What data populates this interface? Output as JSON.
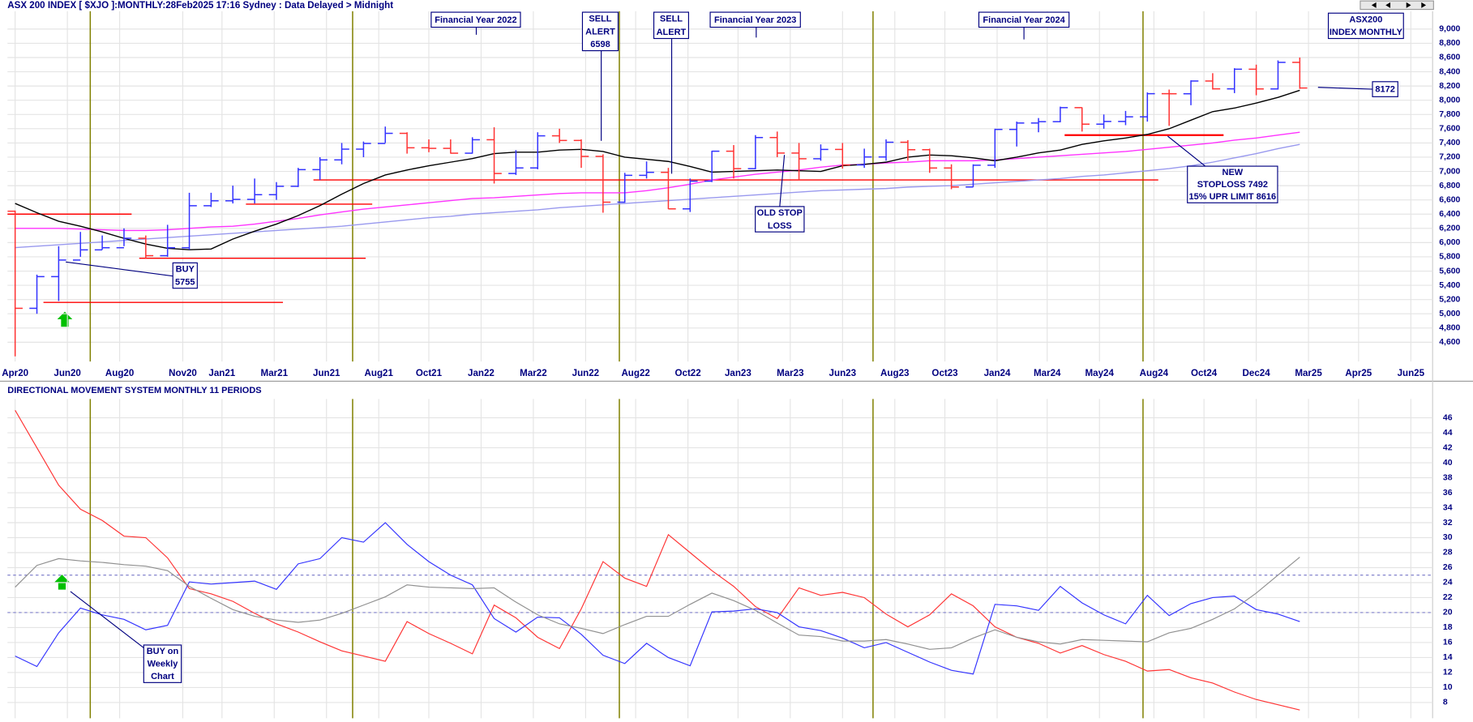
{
  "chart_data": [
    {
      "type": "ohlc",
      "title": "ASX 200 INDEX [ $XJO ]:MONTHLY:28Feb2025 17:16 Sydney : Data Delayed > Midnight",
      "xlim": [
        -0.35,
        65.1
      ],
      "xticks": [
        {
          "value": 0,
          "label": "Apr20"
        },
        {
          "value": 2.4,
          "label": "Jun20"
        },
        {
          "value": 4.8,
          "label": "Aug20"
        },
        {
          "value": 7.7,
          "label": "Nov20"
        },
        {
          "value": 9.5,
          "label": "Jan21"
        },
        {
          "value": 11.9,
          "label": "Mar21"
        },
        {
          "value": 14.3,
          "label": "Jun21"
        },
        {
          "value": 16.7,
          "label": "Aug21"
        },
        {
          "value": 19.0,
          "label": "Oct21"
        },
        {
          "value": 21.4,
          "label": "Jan22"
        },
        {
          "value": 23.8,
          "label": "Mar22"
        },
        {
          "value": 26.2,
          "label": "Jun22"
        },
        {
          "value": 28.5,
          "label": "Aug22"
        },
        {
          "value": 30.9,
          "label": "Oct22"
        },
        {
          "value": 33.2,
          "label": "Jan23"
        },
        {
          "value": 35.6,
          "label": "Mar23"
        },
        {
          "value": 38.0,
          "label": "Jun23"
        },
        {
          "value": 40.4,
          "label": "Aug23"
        },
        {
          "value": 42.7,
          "label": "Oct23"
        },
        {
          "value": 45.1,
          "label": "Jan24"
        },
        {
          "value": 47.4,
          "label": "Mar24"
        },
        {
          "value": 49.8,
          "label": "May24"
        },
        {
          "value": 52.3,
          "label": "Aug24"
        },
        {
          "value": 54.6,
          "label": "Oct24"
        },
        {
          "value": 57.0,
          "label": "Dec24"
        },
        {
          "value": 59.4,
          "label": "Mar25"
        },
        {
          "value": 61.7,
          "label": "Apr25"
        },
        {
          "value": 64.1,
          "label": "Jun25"
        }
      ],
      "ylim": [
        4330,
        9250
      ],
      "yticks": [
        {
          "value": 4600,
          "label": "4,600"
        },
        {
          "value": 4800,
          "label": "4,800"
        },
        {
          "value": 5000,
          "label": "5,000"
        },
        {
          "value": 5200,
          "label": "5,200"
        },
        {
          "value": 5400,
          "label": "5,400"
        },
        {
          "value": 5600,
          "label": "5,600"
        },
        {
          "value": 5800,
          "label": "5,800"
        },
        {
          "value": 6000,
          "label": "6,000"
        },
        {
          "value": 6200,
          "label": "6,200"
        },
        {
          "value": 6400,
          "label": "6,400"
        },
        {
          "value": 6600,
          "label": "6,600"
        },
        {
          "value": 6800,
          "label": "6,800"
        },
        {
          "value": 7000,
          "label": "7,000"
        },
        {
          "value": 7200,
          "label": "7,200"
        },
        {
          "value": 7400,
          "label": "7,400"
        },
        {
          "value": 7600,
          "label": "7,600"
        },
        {
          "value": 7800,
          "label": "7,800"
        },
        {
          "value": 8000,
          "label": "8,000"
        },
        {
          "value": 8200,
          "label": "8,200"
        },
        {
          "value": 8400,
          "label": "8,400"
        },
        {
          "value": 8600,
          "label": "8,600"
        },
        {
          "value": 8800,
          "label": "8,800"
        },
        {
          "value": 9000,
          "label": "9,000"
        }
      ],
      "grid": true,
      "up_color": "#3333ff",
      "down_color": "#ff3333",
      "open": [
        6441,
        5077,
        5522,
        5755,
        5898,
        5928,
        6061,
        5816,
        5928,
        6518,
        6587,
        6607,
        6673,
        6791,
        7025,
        7162,
        7313,
        7393,
        7535,
        7332,
        7324,
        7256,
        7445,
        6971,
        7049,
        7500,
        7435,
        7211,
        6568,
        6945,
        6987,
        6474,
        6863,
        7284,
        7039,
        7476,
        7258,
        7178,
        7309,
        7091,
        7203,
        7410,
        7305,
        7048,
        6781,
        7087,
        7590,
        7680,
        7699,
        7896,
        7664,
        7702,
        7767,
        8092,
        8091,
        8270,
        8160,
        8436,
        8159,
        8532
      ],
      "high": [
        6450,
        5550,
        5950,
        6150,
        6100,
        6200,
        6100,
        6250,
        6700,
        6700,
        6800,
        6900,
        6850,
        7050,
        7200,
        7400,
        7420,
        7630,
        7550,
        7450,
        7450,
        7480,
        7620,
        7300,
        7550,
        7600,
        7450,
        7240,
        6980,
        7140,
        7050,
        6900,
        7290,
        7370,
        7510,
        7560,
        7400,
        7380,
        7400,
        7320,
        7450,
        7440,
        7320,
        7100,
        7100,
        7600,
        7700,
        7750,
        7910,
        7900,
        7800,
        7850,
        8110,
        8150,
        8280,
        8380,
        8450,
        8500,
        8560,
        8600
      ],
      "low": [
        4402,
        5000,
        5180,
        5800,
        5900,
        5950,
        5780,
        5800,
        5900,
        6500,
        6550,
        6550,
        6600,
        6780,
        6880,
        7100,
        7200,
        7400,
        7250,
        7270,
        7250,
        7250,
        6830,
        6950,
        7030,
        7400,
        7050,
        6420,
        6560,
        6900,
        6470,
        6430,
        6850,
        6900,
        7030,
        7200,
        6880,
        7150,
        7040,
        7050,
        7150,
        7150,
        6980,
        6750,
        6780,
        7050,
        7350,
        7550,
        7690,
        7560,
        7600,
        7650,
        7700,
        7640,
        7930,
        8150,
        8100,
        8070,
        8150,
        8160
      ],
      "close": [
        5077,
        5522,
        5755,
        5898,
        5928,
        6061,
        5816,
        5928,
        6518,
        6587,
        6607,
        6673,
        6791,
        7025,
        7162,
        7313,
        7393,
        7535,
        7332,
        7324,
        7256,
        7445,
        6971,
        7049,
        7500,
        7435,
        7211,
        6568,
        6945,
        6987,
        6474,
        6863,
        7284,
        7039,
        7476,
        7258,
        7178,
        7309,
        7091,
        7203,
        7410,
        7305,
        7048,
        6781,
        7087,
        7590,
        7680,
        7699,
        7896,
        7664,
        7702,
        7767,
        8092,
        8091,
        8270,
        8160,
        8436,
        8159,
        8532,
        8172
      ],
      "overlays": [
        {
          "color": "#9999ee",
          "values": [
            5930,
            5950,
            5970,
            5990,
            6010,
            6030,
            6050,
            6070,
            6090,
            6110,
            6130,
            6150,
            6170,
            6190,
            6210,
            6230,
            6260,
            6290,
            6320,
            6350,
            6370,
            6400,
            6420,
            6440,
            6460,
            6490,
            6510,
            6530,
            6550,
            6570,
            6590,
            6610,
            6630,
            6650,
            6670,
            6690,
            6710,
            6730,
            6740,
            6750,
            6760,
            6780,
            6790,
            6800,
            6820,
            6840,
            6860,
            6880,
            6900,
            6930,
            6950,
            6980,
            7010,
            7040,
            7080,
            7130,
            7190,
            7250,
            7320,
            7380
          ]
        },
        {
          "color": "#ff33ff",
          "values": [
            6200,
            6200,
            6200,
            6190,
            6180,
            6170,
            6170,
            6180,
            6200,
            6220,
            6230,
            6260,
            6300,
            6340,
            6390,
            6430,
            6470,
            6500,
            6530,
            6560,
            6590,
            6620,
            6630,
            6650,
            6670,
            6690,
            6700,
            6700,
            6700,
            6730,
            6770,
            6820,
            6880,
            6920,
            6960,
            6990,
            7020,
            7060,
            7090,
            7100,
            7120,
            7130,
            7150,
            7150,
            7150,
            7160,
            7180,
            7200,
            7220,
            7240,
            7260,
            7280,
            7310,
            7340,
            7370,
            7400,
            7440,
            7470,
            7510,
            7550
          ]
        },
        {
          "color": "#000000",
          "values": [
            6550,
            6420,
            6300,
            6230,
            6150,
            6060,
            5980,
            5920,
            5900,
            5910,
            6050,
            6160,
            6260,
            6380,
            6520,
            6680,
            6830,
            6950,
            7020,
            7080,
            7130,
            7180,
            7250,
            7270,
            7270,
            7300,
            7310,
            7280,
            7200,
            7170,
            7140,
            7070,
            6990,
            7000,
            7010,
            7020,
            7010,
            7000,
            7080,
            7100,
            7130,
            7200,
            7230,
            7220,
            7190,
            7150,
            7200,
            7260,
            7300,
            7380,
            7430,
            7470,
            7520,
            7600,
            7720,
            7840,
            7890,
            7960,
            8040,
            8140
          ]
        }
      ],
      "level_color": "#ff0000",
      "levels": [
        {
          "value": 6400,
          "from": -0.35,
          "to": 5.35
        },
        {
          "value": 5780,
          "from": 5.7,
          "to": 16.1
        },
        {
          "value": 5160,
          "from": 1.3,
          "to": 12.3
        },
        {
          "value": 6540,
          "from": 10.6,
          "to": 16.4
        },
        {
          "value": 6880,
          "from": 13.7,
          "to": 52.5
        },
        {
          "value": 7510,
          "from": 48.2,
          "to": 55.5
        }
      ],
      "vline_color": "#808000",
      "vlines": [
        3.45,
        15.5,
        27.75,
        39.4,
        51.8
      ],
      "annotations": [
        [
          "Financial Year 2022"
        ],
        [
          "SELL",
          "ALERT",
          "6598"
        ],
        [
          "SELL",
          "ALERT"
        ],
        [
          "Financial Year 2023"
        ],
        [
          "Financial Year 2024"
        ],
        [
          "ASX200",
          "INDEX MONTHLY"
        ],
        [
          "8172"
        ],
        [
          "NEW",
          "STOPLOSS 7492",
          "15% UPR LIMIT 8616"
        ],
        [
          "OLD STOP",
          "LOSS"
        ],
        [
          "BUY",
          "5755"
        ]
      ]
    },
    {
      "type": "line",
      "title": "DIRECTIONAL MOVEMENT SYSTEM MONTHLY 11 PERIODS",
      "ylim": [
        5.9,
        48.5
      ],
      "yticks": [
        8,
        10,
        12,
        14,
        16,
        18,
        20,
        22,
        24,
        26,
        28,
        30,
        32,
        34,
        36,
        38,
        40,
        42,
        44,
        46
      ],
      "grid": true,
      "hline_color": "#8080cc",
      "hlines": [
        25,
        20
      ],
      "series": [
        {
          "color": "#ff3333",
          "values": [
            47,
            42,
            37,
            33.8,
            32.3,
            30.2,
            30,
            27.3,
            23.2,
            22.5,
            21.5,
            19.9,
            18.5,
            17.4,
            16.1,
            14.9,
            14.2,
            13.5,
            18.8,
            17.2,
            15.9,
            14.5,
            21,
            19.3,
            16.7,
            15.2,
            20.5,
            26.8,
            24.6,
            23.5,
            30.4,
            28,
            25.6,
            23.5,
            20.8,
            19.2,
            23.3,
            22.3,
            22.7,
            22,
            19.8,
            18.1,
            19.7,
            22.5,
            20.9,
            18.1,
            16.7,
            15.9,
            14.6,
            15.6,
            14.4,
            13.5,
            12.2,
            12.4,
            11.3,
            10.6,
            9.4,
            8.4,
            7.7,
            7
          ]
        },
        {
          "color": "#3333ff",
          "values": [
            14.2,
            12.8,
            17.3,
            20.6,
            19.7,
            19.1,
            17.7,
            18.3,
            24.1,
            23.8,
            24,
            24.2,
            23.1,
            26.5,
            27.2,
            30,
            29.4,
            32,
            29.1,
            26.8,
            25,
            23.7,
            19.2,
            17.4,
            19.4,
            19.3,
            17.1,
            14.3,
            13.2,
            15.9,
            14,
            12.9,
            20.1,
            20.2,
            20.5,
            20,
            18.1,
            17.6,
            16.6,
            15.3,
            16,
            14.7,
            13.4,
            12.3,
            11.8,
            21.1,
            20.9,
            20.3,
            23.5,
            21.3,
            19.7,
            18.5,
            22.3,
            19.6,
            21.2,
            22,
            22.2,
            20.4,
            19.8,
            18.8
          ]
        },
        {
          "color": "#909090",
          "values": [
            23.4,
            26.3,
            27.2,
            26.9,
            26.7,
            26.4,
            26.2,
            25.6,
            23.5,
            21.9,
            20.4,
            19.5,
            19,
            18.7,
            19,
            19.9,
            21,
            22.1,
            23.7,
            23.4,
            23.3,
            23.2,
            23.3,
            21.4,
            19.7,
            18.5,
            17.9,
            17.2,
            18.4,
            19.5,
            19.5,
            21.1,
            22.6,
            21.6,
            20.3,
            18.6,
            17,
            16.8,
            16.2,
            16.2,
            16.4,
            15.8,
            15.1,
            15.3,
            16.6,
            17.7,
            16.7,
            16.1,
            15.8,
            16.4,
            16.3,
            16.2,
            16.1,
            17.3,
            17.9,
            19.1,
            20.5,
            22.6,
            25,
            27.4
          ]
        }
      ],
      "annotations": [
        [
          "BUY on",
          "Weekly",
          "Chart"
        ]
      ]
    }
  ]
}
